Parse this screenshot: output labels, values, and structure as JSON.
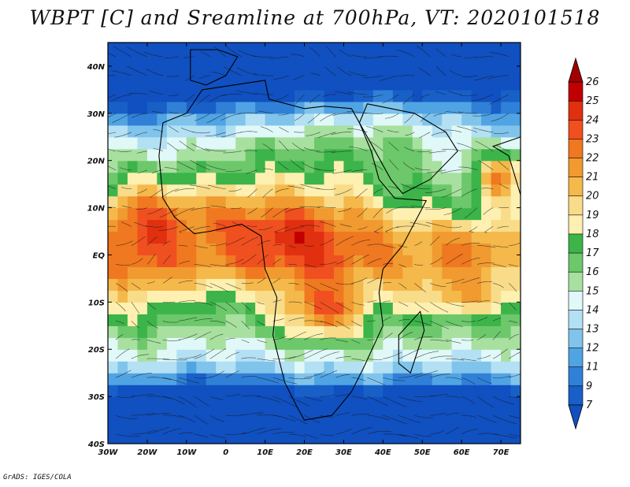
{
  "title": "WBPT [C] and Sreamline at 700hPa, VT: 2020101518",
  "credit": "GrADS: IGES/COLA",
  "map": {
    "projection": "latlon",
    "lon_range": [
      -30,
      75
    ],
    "lat_range": [
      -40,
      45
    ],
    "x_ticks": [
      "30W",
      "20W",
      "10W",
      "0",
      "10E",
      "20E",
      "30E",
      "40E",
      "50E",
      "60E",
      "70E"
    ],
    "x_tick_values": [
      -30,
      -20,
      -10,
      0,
      10,
      20,
      30,
      40,
      50,
      60,
      70
    ],
    "y_ticks": [
      "40N",
      "30N",
      "20N",
      "10N",
      "EQ",
      "10S",
      "20S",
      "30S",
      "40S"
    ],
    "y_tick_values": [
      40,
      30,
      20,
      10,
      0,
      -10,
      -20,
      -30,
      -40
    ],
    "field": "wet-bulb potential temperature shaded with streamlines and country borders"
  },
  "colorbar": {
    "labels": [
      "26",
      "25",
      "24",
      "23",
      "22",
      "21",
      "20",
      "19",
      "18",
      "17",
      "16",
      "15",
      "14",
      "13",
      "12",
      "11",
      "9",
      "7"
    ],
    "colors": [
      "#a00000",
      "#c00000",
      "#e03010",
      "#f05020",
      "#f07820",
      "#f09a30",
      "#f5b84a",
      "#f8dc8a",
      "#fdf0b0",
      "#3cb44a",
      "#6cc86a",
      "#a8e0a0",
      "#e0f8f8",
      "#b4e0f4",
      "#80c4ec",
      "#50a4e4",
      "#3080d8",
      "#1860c8",
      "#1050c0"
    ]
  }
}
